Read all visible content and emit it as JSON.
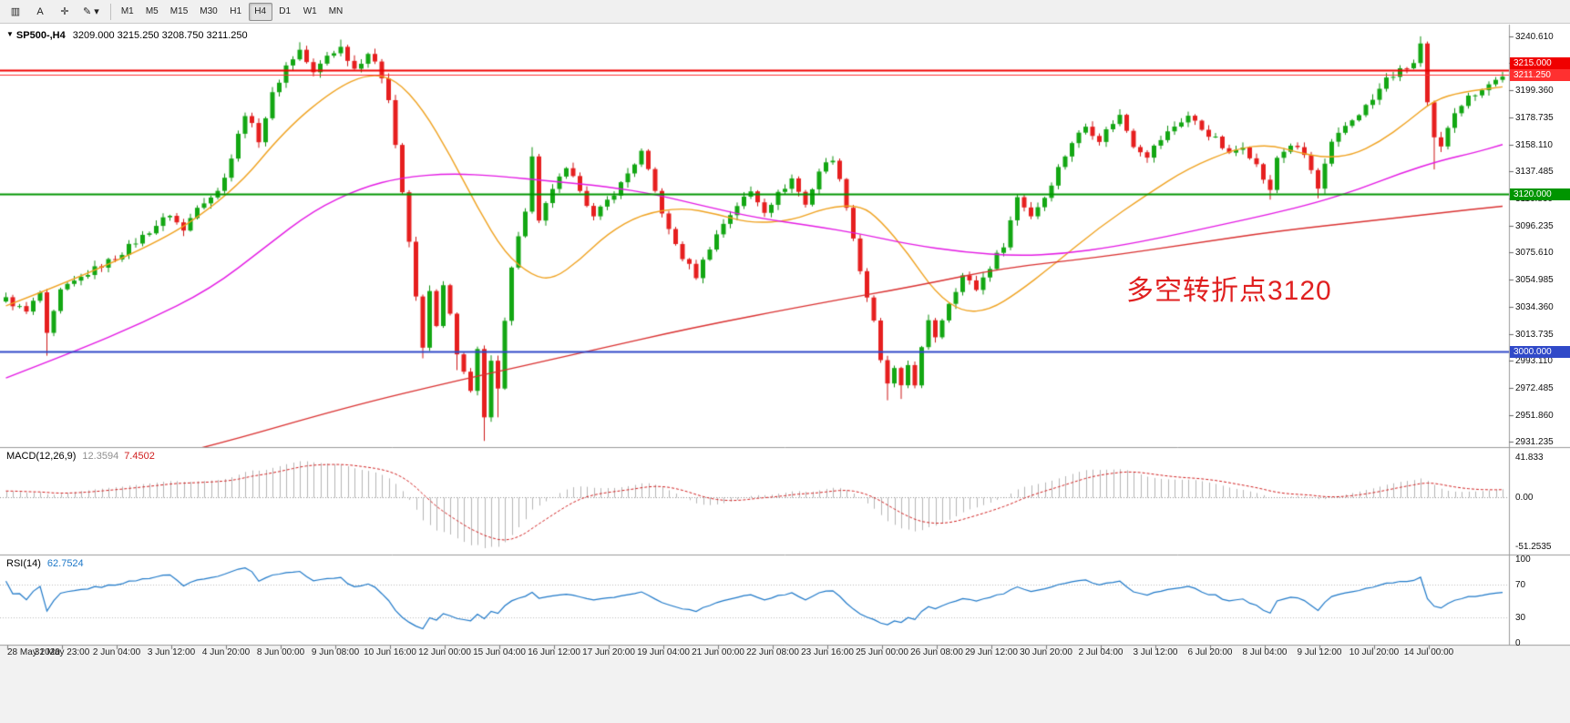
{
  "toolbar": {
    "tools": [
      {
        "name": "charts-grid-icon",
        "glyph": "▥"
      },
      {
        "name": "text-tool-icon",
        "glyph": "A"
      },
      {
        "name": "crosshair-icon",
        "glyph": "✛"
      },
      {
        "name": "draw-tools-icon",
        "glyph": "✎ ▾"
      }
    ],
    "timeframes": [
      "M1",
      "M5",
      "M15",
      "M30",
      "H1",
      "H4",
      "D1",
      "W1",
      "MN"
    ],
    "active_timeframe": "H4"
  },
  "chart": {
    "title": "SP500-,H4",
    "ohlc": "3209.000 3215.250 3208.750 3211.250",
    "annotation": {
      "text": "多空转折点3120",
      "color": "#e02020"
    },
    "levels": [
      {
        "price": 3215.0,
        "label": "3215.000",
        "color": "#f00000",
        "line_width": 2
      },
      {
        "price": 3211.25,
        "label": "3211.250",
        "color": "#ff3030",
        "line_width": 1
      },
      {
        "price": 3120.0,
        "label": "3120.000",
        "color": "#009500",
        "line_width": 2
      },
      {
        "price": 3000.0,
        "label": "3000.000",
        "color": "#3049c8",
        "line_width": 2
      }
    ],
    "price_scale": [
      3240.61,
      3219.985,
      3199.36,
      3178.735,
      3158.11,
      3137.485,
      3116.86,
      3096.235,
      3075.61,
      3054.985,
      3034.36,
      3013.735,
      2993.11,
      2972.485,
      2951.86,
      2931.235
    ],
    "price_range": {
      "max": 3246,
      "min": 2928
    }
  },
  "chart_data": {
    "type": "candlestick",
    "symbol": "SP500-",
    "timeframe": "H4",
    "bars": 220,
    "up_color": "#13a713",
    "down_color": "#e61f1f",
    "close_waypoints": [
      [
        0,
        3040
      ],
      [
        3,
        3030
      ],
      [
        5,
        3045
      ],
      [
        6,
        3012
      ],
      [
        8,
        3046
      ],
      [
        12,
        3060
      ],
      [
        16,
        3072
      ],
      [
        20,
        3088
      ],
      [
        24,
        3105
      ],
      [
        26,
        3092
      ],
      [
        28,
        3112
      ],
      [
        31,
        3122
      ],
      [
        33,
        3148
      ],
      [
        35,
        3182
      ],
      [
        37,
        3162
      ],
      [
        39,
        3196
      ],
      [
        41,
        3218
      ],
      [
        43,
        3230
      ],
      [
        45,
        3212
      ],
      [
        47,
        3226
      ],
      [
        49,
        3232
      ],
      [
        51,
        3216
      ],
      [
        53,
        3228
      ],
      [
        55,
        3210
      ],
      [
        56,
        3194
      ],
      [
        57,
        3158
      ],
      [
        58,
        3122
      ],
      [
        59,
        3082
      ],
      [
        60,
        3042
      ],
      [
        61,
        3002
      ],
      [
        62,
        3048
      ],
      [
        63,
        3018
      ],
      [
        64,
        3050
      ],
      [
        65,
        3028
      ],
      [
        66,
        2996
      ],
      [
        68,
        2972
      ],
      [
        69,
        3002
      ],
      [
        70,
        2948
      ],
      [
        71,
        2992
      ],
      [
        72,
        2970
      ],
      [
        73,
        3026
      ],
      [
        74,
        3066
      ],
      [
        76,
        3108
      ],
      [
        77,
        3148
      ],
      [
        78,
        3098
      ],
      [
        80,
        3125
      ],
      [
        82,
        3138
      ],
      [
        84,
        3125
      ],
      [
        86,
        3102
      ],
      [
        88,
        3115
      ],
      [
        90,
        3128
      ],
      [
        92,
        3144
      ],
      [
        93,
        3152
      ],
      [
        95,
        3122
      ],
      [
        97,
        3092
      ],
      [
        99,
        3072
      ],
      [
        101,
        3058
      ],
      [
        103,
        3080
      ],
      [
        105,
        3098
      ],
      [
        107,
        3112
      ],
      [
        109,
        3122
      ],
      [
        111,
        3108
      ],
      [
        113,
        3120
      ],
      [
        115,
        3132
      ],
      [
        117,
        3112
      ],
      [
        119,
        3138
      ],
      [
        121,
        3148
      ],
      [
        123,
        3112
      ],
      [
        125,
        3062
      ],
      [
        127,
        3022
      ],
      [
        128,
        2992
      ],
      [
        129,
        2976
      ],
      [
        130,
        2986
      ],
      [
        131,
        2972
      ],
      [
        132,
        2990
      ],
      [
        133,
        2976
      ],
      [
        134,
        3002
      ],
      [
        135,
        3022
      ],
      [
        136,
        3012
      ],
      [
        138,
        3038
      ],
      [
        140,
        3058
      ],
      [
        142,
        3048
      ],
      [
        144,
        3065
      ],
      [
        146,
        3082
      ],
      [
        148,
        3118
      ],
      [
        150,
        3104
      ],
      [
        152,
        3118
      ],
      [
        154,
        3140
      ],
      [
        156,
        3160
      ],
      [
        158,
        3172
      ],
      [
        160,
        3162
      ],
      [
        162,
        3175
      ],
      [
        163,
        3180
      ],
      [
        165,
        3158
      ],
      [
        167,
        3150
      ],
      [
        169,
        3162
      ],
      [
        171,
        3172
      ],
      [
        173,
        3180
      ],
      [
        175,
        3170
      ],
      [
        177,
        3162
      ],
      [
        179,
        3150
      ],
      [
        181,
        3158
      ],
      [
        183,
        3142
      ],
      [
        185,
        3122
      ],
      [
        186,
        3148
      ],
      [
        188,
        3158
      ],
      [
        190,
        3150
      ],
      [
        191,
        3138
      ],
      [
        192,
        3124
      ],
      [
        193,
        3142
      ],
      [
        194,
        3158
      ],
      [
        196,
        3172
      ],
      [
        198,
        3182
      ],
      [
        200,
        3192
      ],
      [
        202,
        3208
      ],
      [
        204,
        3214
      ],
      [
        206,
        3220
      ],
      [
        207,
        3234
      ],
      [
        208,
        3188
      ],
      [
        209,
        3162
      ],
      [
        210,
        3155
      ],
      [
        211,
        3172
      ],
      [
        212,
        3184
      ],
      [
        214,
        3194
      ],
      [
        216,
        3201
      ],
      [
        218,
        3207
      ],
      [
        219,
        3211
      ]
    ],
    "special_wicks": [
      {
        "bar": 6,
        "low": 2997
      },
      {
        "bar": 43,
        "high": 3236
      },
      {
        "bar": 49,
        "high": 3238
      },
      {
        "bar": 61,
        "low": 2995
      },
      {
        "bar": 66,
        "low": 2986
      },
      {
        "bar": 70,
        "low": 2932
      },
      {
        "bar": 71,
        "low": 2952
      },
      {
        "bar": 72,
        "low": 2950
      },
      {
        "bar": 77,
        "high": 3156
      },
      {
        "bar": 93,
        "high": 3155
      },
      {
        "bar": 129,
        "low": 2963
      },
      {
        "bar": 131,
        "low": 2964
      },
      {
        "bar": 185,
        "low": 3116
      },
      {
        "bar": 192,
        "low": 3117
      },
      {
        "bar": 207,
        "high": 3240.5
      },
      {
        "bar": 209,
        "low": 3139
      }
    ],
    "moving_averages": [
      {
        "name": "ma-fast",
        "color": "#efa220",
        "points": [
          [
            0,
            3035
          ],
          [
            20,
            3075
          ],
          [
            33,
            3120
          ],
          [
            41,
            3170
          ],
          [
            48,
            3200
          ],
          [
            53,
            3212
          ],
          [
            57,
            3208
          ],
          [
            61,
            3185
          ],
          [
            65,
            3150
          ],
          [
            69,
            3110
          ],
          [
            73,
            3075
          ],
          [
            77,
            3058
          ],
          [
            80,
            3055
          ],
          [
            84,
            3070
          ],
          [
            88,
            3090
          ],
          [
            93,
            3105
          ],
          [
            99,
            3110
          ],
          [
            104,
            3105
          ],
          [
            109,
            3098
          ],
          [
            115,
            3100
          ],
          [
            120,
            3110
          ],
          [
            125,
            3112
          ],
          [
            128,
            3100
          ],
          [
            132,
            3075
          ],
          [
            136,
            3045
          ],
          [
            140,
            3030
          ],
          [
            144,
            3032
          ],
          [
            148,
            3045
          ],
          [
            153,
            3065
          ],
          [
            160,
            3095
          ],
          [
            167,
            3120
          ],
          [
            173,
            3140
          ],
          [
            180,
            3155
          ],
          [
            185,
            3158
          ],
          [
            189,
            3152
          ],
          [
            193,
            3148
          ],
          [
            197,
            3150
          ],
          [
            201,
            3160
          ],
          [
            205,
            3175
          ],
          [
            209,
            3192
          ],
          [
            213,
            3198
          ],
          [
            219,
            3202
          ]
        ]
      },
      {
        "name": "ma-mid",
        "color": "#e319e3",
        "points": [
          [
            0,
            2980
          ],
          [
            10,
            3000
          ],
          [
            20,
            3022
          ],
          [
            30,
            3048
          ],
          [
            38,
            3080
          ],
          [
            45,
            3108
          ],
          [
            52,
            3125
          ],
          [
            58,
            3133
          ],
          [
            65,
            3136
          ],
          [
            72,
            3134
          ],
          [
            80,
            3130
          ],
          [
            88,
            3126
          ],
          [
            95,
            3120
          ],
          [
            103,
            3110
          ],
          [
            110,
            3102
          ],
          [
            118,
            3096
          ],
          [
            125,
            3090
          ],
          [
            132,
            3082
          ],
          [
            140,
            3076
          ],
          [
            148,
            3073
          ],
          [
            155,
            3075
          ],
          [
            162,
            3080
          ],
          [
            170,
            3088
          ],
          [
            178,
            3097
          ],
          [
            185,
            3105
          ],
          [
            192,
            3114
          ],
          [
            198,
            3124
          ],
          [
            204,
            3136
          ],
          [
            210,
            3146
          ],
          [
            215,
            3152
          ],
          [
            219,
            3158
          ]
        ]
      },
      {
        "name": "ma-slow",
        "color": "#d93030",
        "points": [
          [
            0,
            2895
          ],
          [
            15,
            2910
          ],
          [
            30,
            2928
          ],
          [
            50,
            2958
          ],
          [
            66,
            2978
          ],
          [
            85,
            3000
          ],
          [
            100,
            3018
          ],
          [
            119,
            3037
          ],
          [
            133,
            3050
          ],
          [
            146,
            3064
          ],
          [
            160,
            3072
          ],
          [
            173,
            3082
          ],
          [
            186,
            3092
          ],
          [
            200,
            3100
          ],
          [
            210,
            3106
          ],
          [
            219,
            3111
          ]
        ]
      }
    ]
  },
  "macd": {
    "label": "MACD(12,26,9)",
    "value_hist": "12.3594",
    "value_signal": "7.4502",
    "scale": [
      "41.833",
      "0.00",
      "-51.2535"
    ],
    "fast": 12,
    "slow": 26,
    "signal": 9,
    "hist_color": "#b4b4b4",
    "signal_color": "#d02020"
  },
  "rsi": {
    "label": "RSI(14)",
    "value": "62.7524",
    "scale": [
      "100",
      "70",
      "30",
      "0"
    ],
    "period": 14,
    "levels": [
      70,
      30
    ],
    "line_color": "#1e78c8"
  },
  "time_axis": [
    "28 May 2020",
    "31 May 23:00",
    "2 Jun 04:00",
    "3 Jun 12:00",
    "4 Jun 20:00",
    "8 Jun 00:00",
    "9 Jun 08:00",
    "10 Jun 16:00",
    "12 Jun 00:00",
    "15 Jun 04:00",
    "16 Jun 12:00",
    "17 Jun 20:00",
    "19 Jun 04:00",
    "21 Jun 00:00",
    "22 Jun 08:00",
    "23 Jun 16:00",
    "25 Jun 00:00",
    "26 Jun 08:00",
    "29 Jun 12:00",
    "30 Jun 20:00",
    "2 Jul 04:00",
    "3 Jul 12:00",
    "6 Jul 20:00",
    "8 Jul 04:00",
    "9 Jul 12:00",
    "10 Jul 20:00",
    "14 Jul 00:00"
  ]
}
